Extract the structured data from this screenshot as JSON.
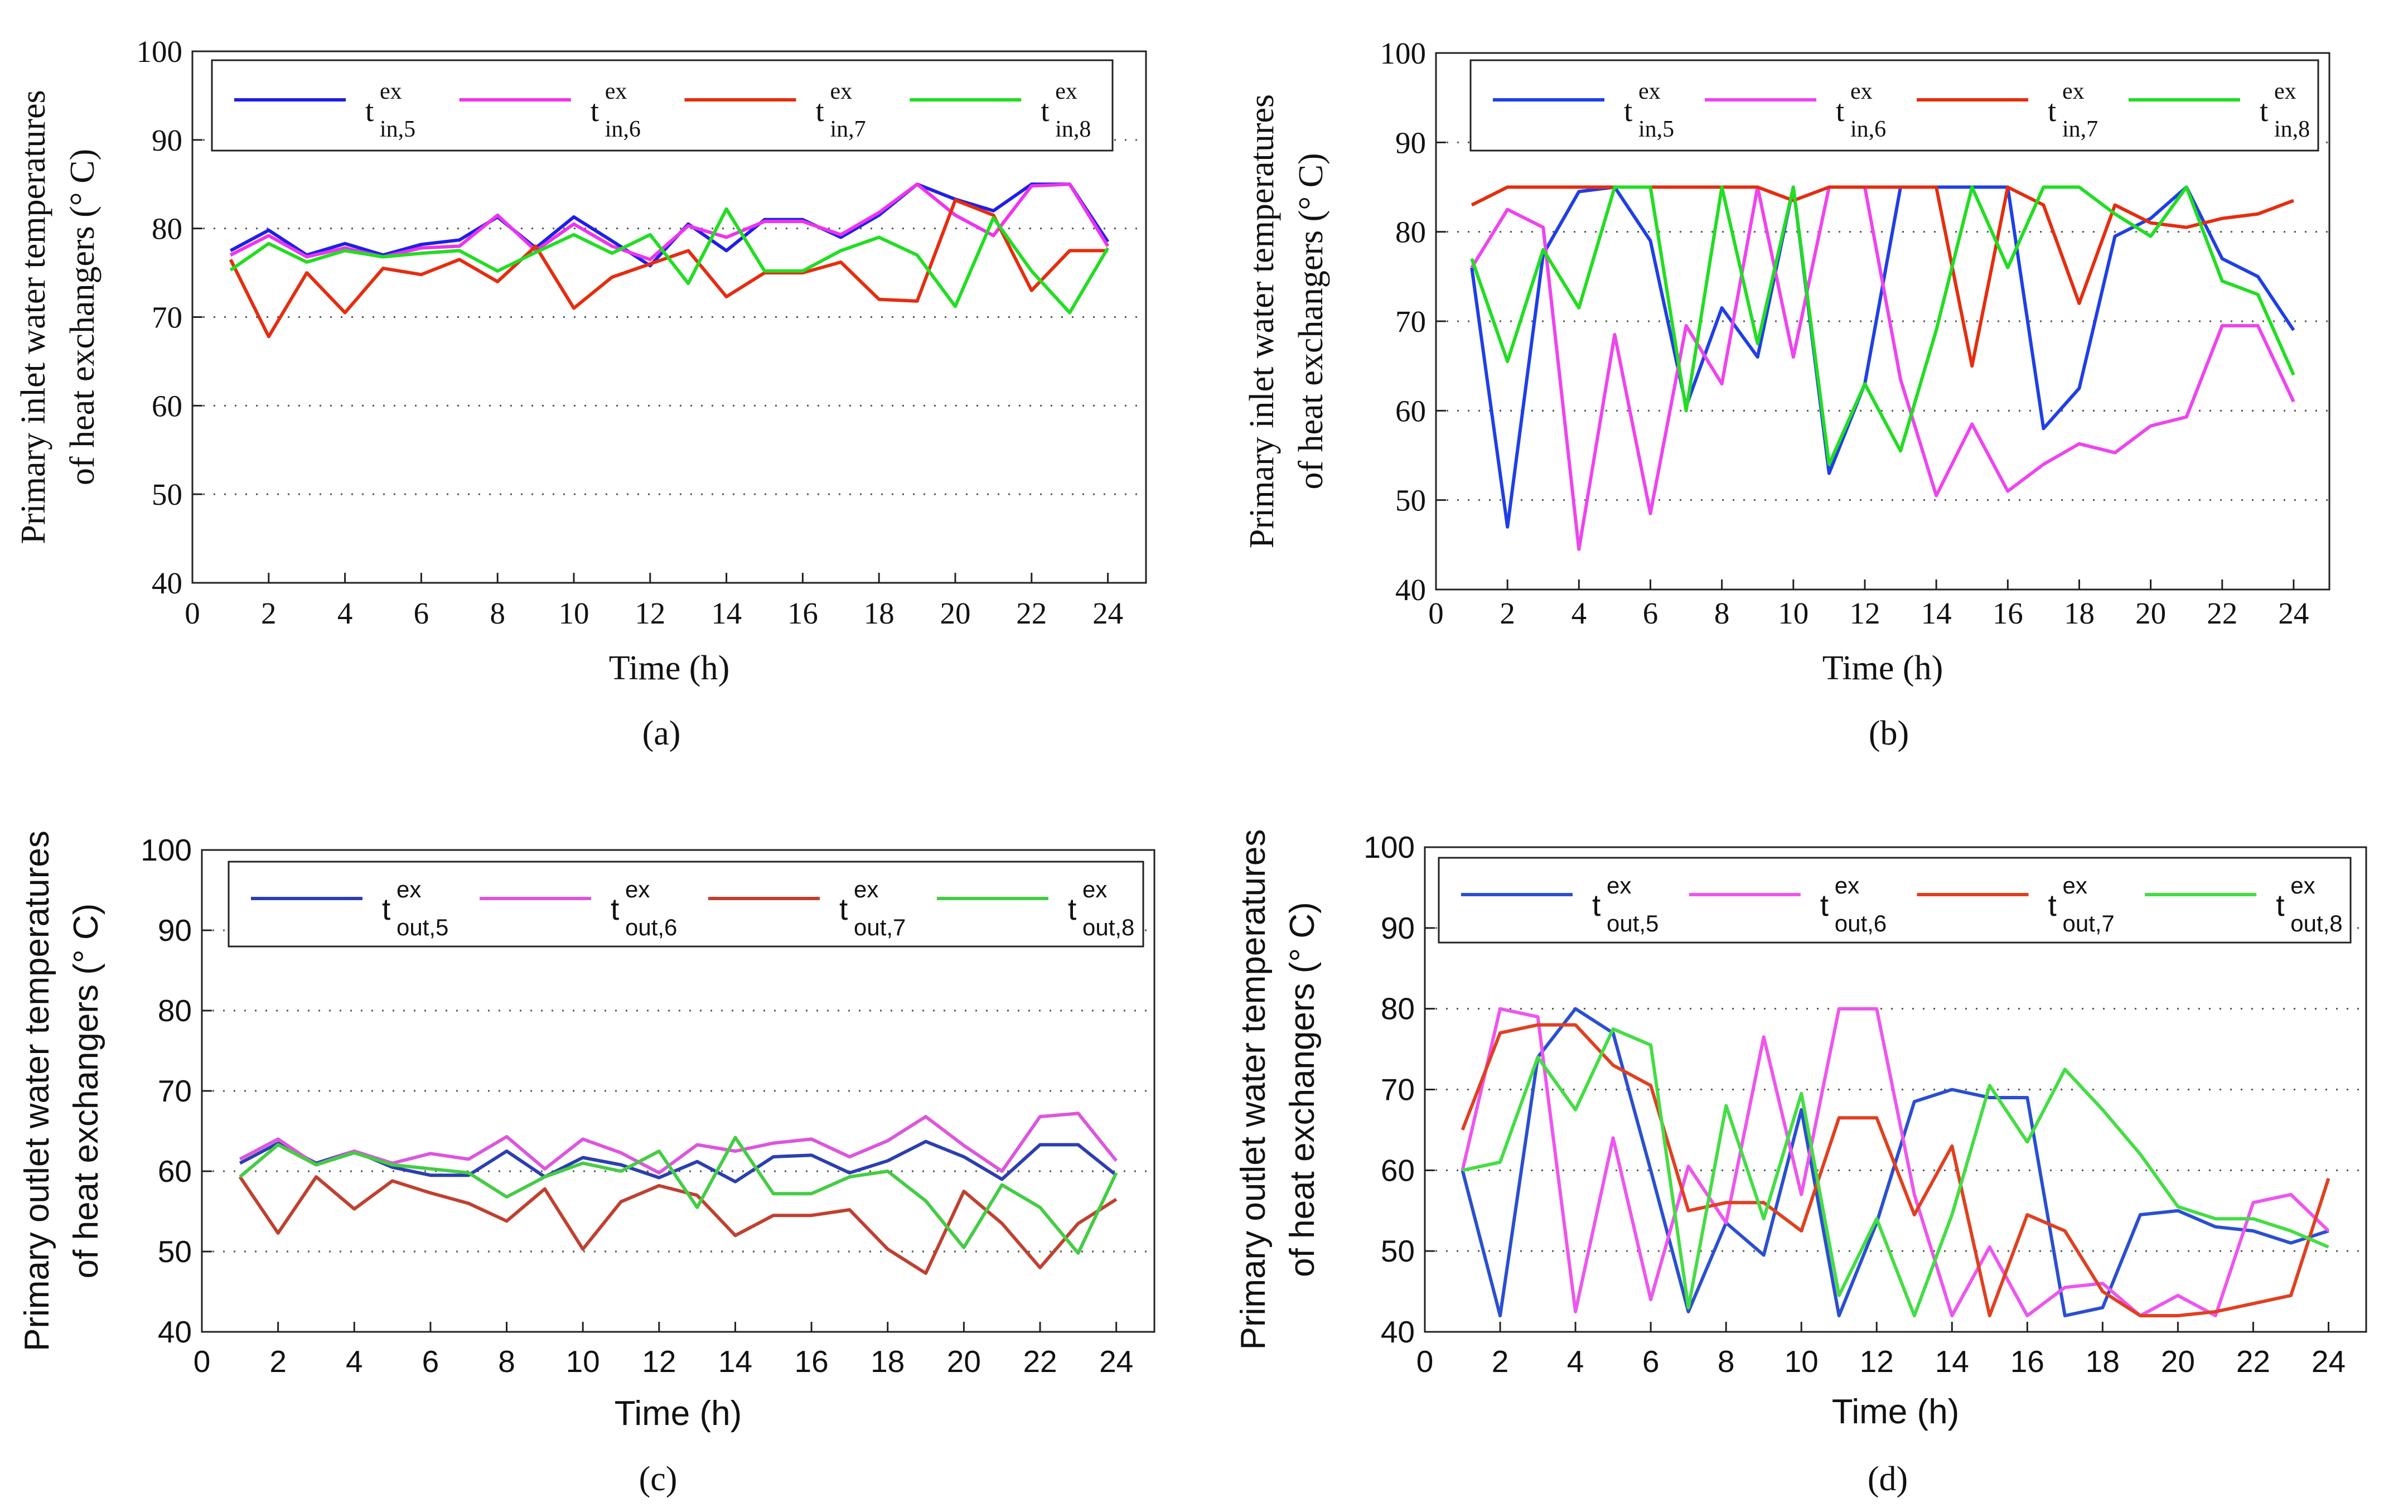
{
  "chart_data": [
    {
      "type": "line",
      "panel": "(a)",
      "style": "serif",
      "ylabel_lines": [
        "Primary inlet water temperatures",
        "of heat exchangers (° C)"
      ],
      "xlabel": "Time (h)",
      "xlim": [
        0,
        25
      ],
      "ylim": [
        40,
        100
      ],
      "xticks": [
        0,
        2,
        4,
        6,
        8,
        10,
        12,
        14,
        16,
        18,
        20,
        22,
        24
      ],
      "yticks": [
        40,
        50,
        60,
        70,
        80,
        90,
        100
      ],
      "grid": "horizontal-dotted",
      "x": [
        1,
        2,
        3,
        4,
        5,
        6,
        7,
        8,
        9,
        10,
        11,
        12,
        13,
        14,
        15,
        16,
        17,
        18,
        19,
        20,
        21,
        22,
        23,
        24
      ],
      "series": [
        {
          "name_base": "t",
          "sup": "ex",
          "sub": "in,5",
          "color": "#1f1fe6",
          "values": [
            77.5,
            79.8,
            77,
            78.3,
            77,
            78.2,
            78.7,
            81.3,
            77.8,
            81.3,
            78.6,
            75.8,
            80.5,
            77.5,
            81,
            81,
            79,
            81.5,
            85,
            83.3,
            82,
            85,
            85,
            78.5
          ]
        },
        {
          "name_base": "t",
          "sup": "ex",
          "sub": "in,6",
          "color": "#ee33ee",
          "values": [
            77,
            79.2,
            76.8,
            77.8,
            76.8,
            77.8,
            78,
            81.5,
            77.5,
            80.5,
            78,
            76.5,
            80.3,
            79,
            80.8,
            80.8,
            79.3,
            81.8,
            85,
            81.5,
            79.2,
            84.8,
            85,
            78
          ]
        },
        {
          "name_base": "t",
          "sup": "ex",
          "sub": "in,7",
          "color": "#e52d10",
          "values": [
            76.5,
            67.8,
            75,
            70.5,
            75.5,
            74.8,
            76.5,
            74,
            78,
            71,
            74.5,
            76,
            77.5,
            72.3,
            75,
            75,
            76.2,
            72,
            71.8,
            83.2,
            81.5,
            73,
            77.5,
            77.5
          ]
        },
        {
          "name_base": "t",
          "sup": "ex",
          "sub": "in,8",
          "color": "#22dd22",
          "values": [
            75.3,
            78.3,
            76.2,
            77.5,
            76.8,
            77.2,
            77.5,
            75.2,
            77.3,
            79.3,
            77.2,
            79.3,
            73.8,
            82.2,
            75.2,
            75.2,
            77.5,
            79,
            77,
            71.2,
            81.2,
            75.2,
            70.5,
            77.8
          ]
        }
      ]
    },
    {
      "type": "line",
      "panel": "(b)",
      "style": "serif",
      "ylabel_lines": [
        "Primary inlet water temperatures",
        "of heat exchangers (° C)"
      ],
      "xlabel": "Time (h)",
      "xlim": [
        0,
        25
      ],
      "ylim": [
        40,
        100
      ],
      "xticks": [
        0,
        2,
        4,
        6,
        8,
        10,
        12,
        14,
        16,
        18,
        20,
        22,
        24
      ],
      "yticks": [
        40,
        50,
        60,
        70,
        80,
        90,
        100
      ],
      "grid": "horizontal-dotted",
      "x": [
        1,
        2,
        3,
        4,
        5,
        6,
        7,
        8,
        9,
        10,
        11,
        12,
        13,
        14,
        15,
        16,
        17,
        18,
        19,
        20,
        21,
        22,
        23,
        24
      ],
      "series": [
        {
          "name_base": "t",
          "sup": "ex",
          "sub": "in,5",
          "color": "#1f3fe6",
          "values": [
            76,
            47,
            77.5,
            84.5,
            85,
            79,
            60.5,
            71.5,
            66,
            85,
            53,
            63,
            85,
            85,
            85,
            85,
            58,
            62.5,
            79.5,
            81.5,
            85,
            77,
            75,
            69
          ]
        },
        {
          "name_base": "t",
          "sup": "ex",
          "sub": "in,6",
          "color": "#ee44ee",
          "values": [
            76,
            82.5,
            80.5,
            44.5,
            68.5,
            48.5,
            69.5,
            63,
            85,
            66,
            85,
            85,
            63.5,
            50.5,
            58.5,
            51,
            54,
            56.3,
            55.3,
            58.3,
            59.3,
            69.5,
            69.5,
            61
          ]
        },
        {
          "name_base": "t",
          "sup": "ex",
          "sub": "in,7",
          "color": "#e52d10",
          "values": [
            83,
            85,
            85,
            85,
            85,
            85,
            85,
            85,
            85,
            83.5,
            85,
            85,
            85,
            85,
            65,
            85,
            83,
            72,
            83,
            81,
            80.5,
            81.5,
            82,
            83.5
          ]
        },
        {
          "name_base": "t",
          "sup": "ex",
          "sub": "in,8",
          "color": "#22dd22",
          "values": [
            77,
            65.5,
            78,
            71.5,
            85,
            85,
            60,
            85,
            67.5,
            85,
            54,
            63,
            55.5,
            69,
            85,
            76,
            85,
            85,
            82,
            79.5,
            85,
            74.5,
            73,
            64
          ]
        }
      ]
    },
    {
      "type": "line",
      "panel": "(c)",
      "style": "sans",
      "ylabel_lines": [
        "Primary outlet water temperatures",
        "of heat exchangers (° C)"
      ],
      "xlabel": "Time (h)",
      "xlim": [
        0,
        25
      ],
      "ylim": [
        40,
        100
      ],
      "xticks": [
        0,
        2,
        4,
        6,
        8,
        10,
        12,
        14,
        16,
        18,
        20,
        22,
        24
      ],
      "yticks": [
        40,
        50,
        60,
        70,
        80,
        90,
        100
      ],
      "grid": "horizontal-dotted",
      "x": [
        1,
        2,
        3,
        4,
        5,
        6,
        7,
        8,
        9,
        10,
        11,
        12,
        13,
        14,
        15,
        16,
        17,
        18,
        19,
        20,
        21,
        22,
        23,
        24
      ],
      "series": [
        {
          "name_base": "t",
          "sup": "ex",
          "sub": "out,5",
          "color": "#2b3fb0",
          "values": [
            61,
            63.5,
            61,
            62.5,
            60.5,
            59.5,
            59.5,
            62.5,
            59.3,
            61.7,
            60.8,
            59.2,
            61.2,
            58.7,
            61.8,
            62,
            59.8,
            61.3,
            63.7,
            61.8,
            59,
            63.3,
            63.3,
            59.5
          ]
        },
        {
          "name_base": "t",
          "sup": "ex",
          "sub": "out,6",
          "color": "#dd55dd",
          "values": [
            61.5,
            64,
            60.8,
            62.5,
            61,
            62.2,
            61.5,
            64.3,
            60.3,
            64,
            62.3,
            59.8,
            63.3,
            62.5,
            63.5,
            64,
            61.8,
            63.8,
            66.8,
            63.2,
            60,
            66.8,
            67.2,
            61.3
          ]
        },
        {
          "name_base": "t",
          "sup": "ex",
          "sub": "out,7",
          "color": "#c04030",
          "values": [
            59.3,
            52.3,
            59.3,
            55.3,
            58.8,
            57.3,
            56,
            53.8,
            57.8,
            50.3,
            56.2,
            58.2,
            57,
            52,
            54.5,
            54.5,
            55.2,
            50.3,
            47.3,
            57.5,
            53.5,
            48,
            53.5,
            56.5
          ]
        },
        {
          "name_base": "t",
          "sup": "ex",
          "sub": "out,8",
          "color": "#44cc44",
          "values": [
            59.3,
            63.3,
            60.8,
            62.3,
            60.8,
            60.3,
            59.8,
            56.8,
            59.3,
            61,
            60,
            62.5,
            55.5,
            64.2,
            57.2,
            57.2,
            59.3,
            60,
            56.3,
            50.5,
            58.3,
            55.5,
            49.8,
            59.8
          ]
        }
      ]
    },
    {
      "type": "line",
      "panel": "(d)",
      "style": "sans",
      "ylabel_lines": [
        "Primary outlet water temperatures",
        "of heat exchangers (° C)"
      ],
      "xlabel": "Time (h)",
      "xlim": [
        0,
        25
      ],
      "ylim": [
        40,
        100
      ],
      "xticks": [
        0,
        2,
        4,
        6,
        8,
        10,
        12,
        14,
        16,
        18,
        20,
        22,
        24
      ],
      "yticks": [
        40,
        50,
        60,
        70,
        80,
        90,
        100
      ],
      "grid": "horizontal-dotted",
      "x": [
        1,
        2,
        3,
        4,
        5,
        6,
        7,
        8,
        9,
        10,
        11,
        12,
        13,
        14,
        15,
        16,
        17,
        18,
        19,
        20,
        21,
        22,
        23,
        24
      ],
      "series": [
        {
          "name_base": "t",
          "sup": "ex",
          "sub": "out,5",
          "color": "#2a4fd0",
          "values": [
            60,
            42,
            74,
            80,
            77,
            60,
            42.5,
            53.5,
            49.5,
            67.5,
            42,
            53.5,
            68.5,
            70,
            69,
            69,
            42,
            43,
            54.5,
            55,
            53,
            52.5,
            51,
            52.5
          ]
        },
        {
          "name_base": "t",
          "sup": "ex",
          "sub": "out,6",
          "color": "#ee55ee",
          "values": [
            60,
            80,
            79,
            42.5,
            64,
            44,
            60.5,
            53.5,
            76.5,
            57,
            80,
            80,
            57,
            42,
            50.5,
            42,
            45.5,
            46,
            42,
            44.5,
            42,
            56,
            57,
            52.5
          ]
        },
        {
          "name_base": "t",
          "sup": "ex",
          "sub": "out,7",
          "color": "#e04020",
          "values": [
            65,
            77,
            78,
            78,
            73,
            70.5,
            55,
            56,
            56,
            52.5,
            66.5,
            66.5,
            54.5,
            63,
            42,
            54.5,
            52.5,
            45,
            42,
            42,
            42.5,
            43.5,
            44.5,
            59
          ]
        },
        {
          "name_base": "t",
          "sup": "ex",
          "sub": "out,8",
          "color": "#44dd44",
          "values": [
            60,
            61,
            74,
            67.5,
            77.5,
            75.5,
            43,
            68,
            54,
            69.5,
            44.5,
            54,
            42,
            54.5,
            70.5,
            63.5,
            72.5,
            67.5,
            62,
            55.5,
            54,
            54,
            52.5,
            50.5
          ]
        }
      ]
    }
  ]
}
